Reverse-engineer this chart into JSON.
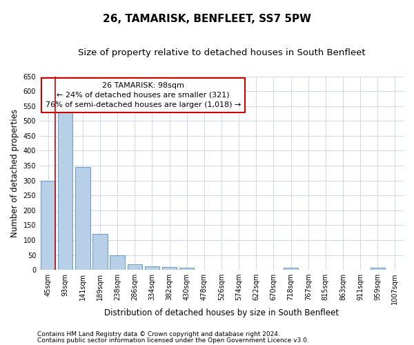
{
  "title": "26, TAMARISK, BENFLEET, SS7 5PW",
  "subtitle": "Size of property relative to detached houses in South Benfleet",
  "xlabel": "Distribution of detached houses by size in South Benfleet",
  "ylabel": "Number of detached properties",
  "categories": [
    "45sqm",
    "93sqm",
    "141sqm",
    "189sqm",
    "238sqm",
    "286sqm",
    "334sqm",
    "382sqm",
    "430sqm",
    "478sqm",
    "526sqm",
    "574sqm",
    "622sqm",
    "670sqm",
    "718sqm",
    "767sqm",
    "815sqm",
    "863sqm",
    "911sqm",
    "959sqm",
    "1007sqm"
  ],
  "values": [
    300,
    530,
    345,
    120,
    48,
    20,
    13,
    10,
    7,
    0,
    0,
    0,
    0,
    0,
    7,
    0,
    0,
    0,
    0,
    7,
    0
  ],
  "bar_color": "#b8cfe8",
  "bar_edge_color": "#6699cc",
  "marker_line_color": "#cc0000",
  "annotation_lines": [
    "26 TAMARISK: 98sqm",
    "← 24% of detached houses are smaller (321)",
    "76% of semi-detached houses are larger (1,018) →"
  ],
  "annotation_box_color": "#cc0000",
  "ylim": [
    0,
    650
  ],
  "yticks": [
    0,
    50,
    100,
    150,
    200,
    250,
    300,
    350,
    400,
    450,
    500,
    550,
    600,
    650
  ],
  "footer_line1": "Contains HM Land Registry data © Crown copyright and database right 2024.",
  "footer_line2": "Contains public sector information licensed under the Open Government Licence v3.0.",
  "bg_color": "#ffffff",
  "grid_color": "#ccd8e8",
  "title_fontsize": 11,
  "subtitle_fontsize": 9.5,
  "axis_label_fontsize": 8.5,
  "tick_fontsize": 7,
  "annotation_fontsize": 8,
  "footer_fontsize": 6.5
}
